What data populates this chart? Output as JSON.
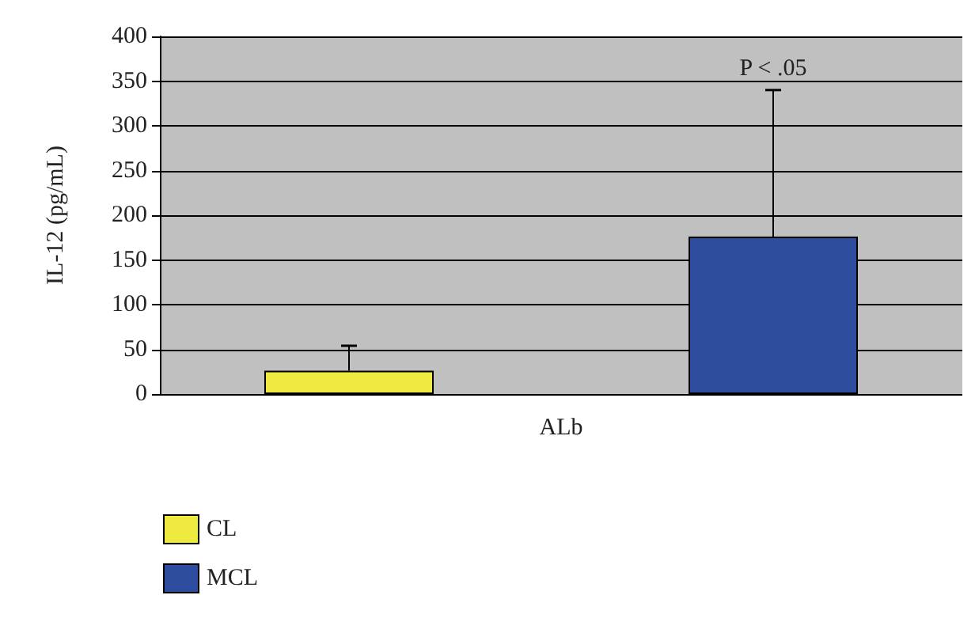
{
  "chart_data": {
    "type": "bar",
    "categories": [
      "ALb"
    ],
    "ylabel": "IL-12 (pg/mL)",
    "series": [
      {
        "name": "CL",
        "color": "#eeea40",
        "values": [
          26
        ],
        "errors": [
          [
            26,
            54
          ]
        ]
      },
      {
        "name": "MCL",
        "color": "#2e4d9e",
        "values": [
          176
        ],
        "errors": [
          [
            176,
            340
          ]
        ]
      }
    ],
    "ylim": [
      0,
      400
    ],
    "yticks": [
      0,
      50,
      100,
      150,
      200,
      250,
      300,
      350,
      400
    ],
    "grid": "y",
    "legend": "bottom left",
    "annotations": [
      "P < .05"
    ]
  }
}
